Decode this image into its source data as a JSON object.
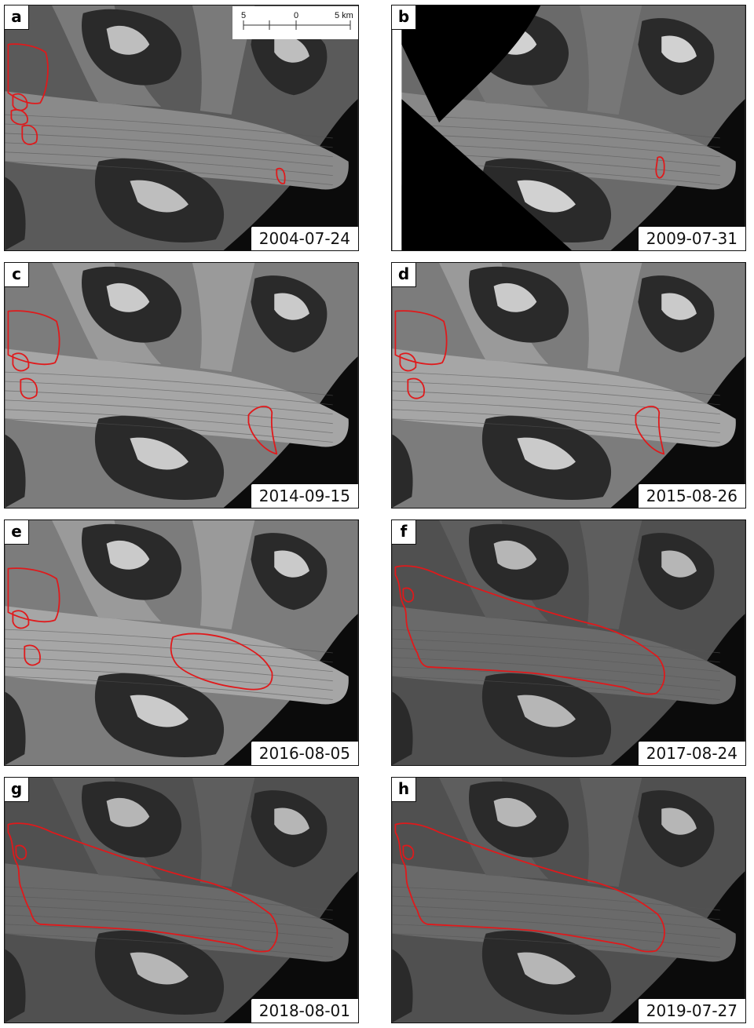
{
  "panels": [
    {
      "letter": "a",
      "date": "2004-07-24",
      "variant": "early",
      "outline": "small"
    },
    {
      "letter": "b",
      "date": "2009-07-31",
      "variant": "rotated",
      "outline": "tiny"
    },
    {
      "letter": "c",
      "date": "2014-09-15",
      "variant": "bright",
      "outline": "medium"
    },
    {
      "letter": "d",
      "date": "2015-08-26",
      "variant": "bright",
      "outline": "medium"
    },
    {
      "letter": "e",
      "date": "2016-08-05",
      "variant": "bright",
      "outline": "large"
    },
    {
      "letter": "f",
      "date": "2017-08-24",
      "variant": "dark",
      "outline": "surge"
    },
    {
      "letter": "g",
      "date": "2018-08-01",
      "variant": "dark",
      "outline": "surge"
    },
    {
      "letter": "h",
      "date": "2019-07-27",
      "variant": "dark",
      "outline": "surge"
    }
  ],
  "scalebar": {
    "left": "5",
    "mid": "0",
    "right": "5 km"
  },
  "colors": {
    "outline": "#e0191b",
    "ocean": "#0b0b0b",
    "ice": "#8c8c8c",
    "rock": "#1e1e1e",
    "snow": "#e8e8e8"
  }
}
